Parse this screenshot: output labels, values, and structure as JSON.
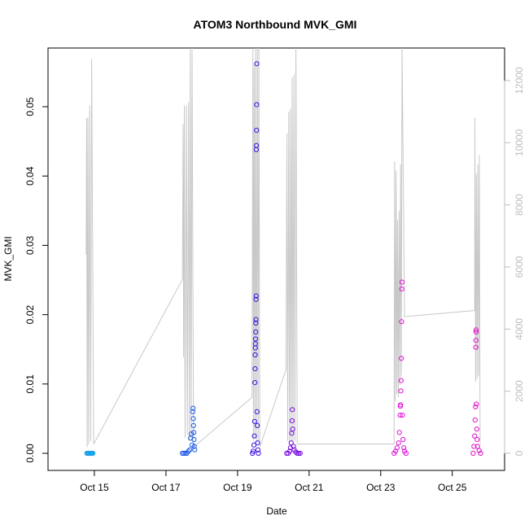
{
  "chart_data": {
    "type": "scatter",
    "title": "ATOM3 Northbound MVK_GMI",
    "xlabel": "Date",
    "ylabel": "MVK_GMI",
    "x_unit": "date",
    "xlim": [
      "2016-10-14T00:00",
      "2016-10-26T04:00"
    ],
    "ylim": [
      0,
      0.056
    ],
    "y_ticks": [
      0.0,
      0.01,
      0.02,
      0.03,
      0.04,
      0.05
    ],
    "y_tick_labels": [
      "0.00",
      "0.01",
      "0.02",
      "0.03",
      "0.04",
      "0.05"
    ],
    "x_ticks": [
      "2016-10-15",
      "2016-10-17",
      "2016-10-19",
      "2016-10-21",
      "2016-10-23",
      "2016-10-25"
    ],
    "x_tick_labels": [
      "Oct 15",
      "Oct 17",
      "Oct 19",
      "Oct 21",
      "Oct 23",
      "Oct 25"
    ],
    "y2lim": [
      0,
      12500
    ],
    "y2_ticks": [
      0,
      2000,
      4000,
      6000,
      8000,
      10000,
      12000
    ],
    "y2_tick_labels": [
      "0",
      "2000",
      "4000",
      "6000",
      "8000",
      "10000",
      "12000"
    ],
    "colors": {
      "altitude_line": "#c8c8c8",
      "right_axis": "#bdbdbd",
      "flight_colors": [
        "#1aa3e8",
        "#1f5be6",
        "#3a10e0",
        "#7a10e0",
        "#e010d8",
        "#e010c8"
      ]
    },
    "series": [
      {
        "color": "#1aa3e8",
        "points": [
          [
            "2016-10-14T19:00",
            0.0
          ],
          [
            "2016-10-14T19:30",
            0.0
          ],
          [
            "2016-10-14T20:00",
            0.0
          ],
          [
            "2016-10-14T20:30",
            0.0
          ],
          [
            "2016-10-14T21:00",
            0.0
          ],
          [
            "2016-10-14T21:30",
            0.0
          ],
          [
            "2016-10-14T22:00",
            0.0
          ],
          [
            "2016-10-14T22:30",
            0.0
          ],
          [
            "2016-10-14T23:00",
            0.0
          ]
        ]
      },
      {
        "color": "#1f5be6",
        "points": [
          [
            "2016-10-17T11:00",
            0.0
          ],
          [
            "2016-10-17T12:00",
            0.0
          ],
          [
            "2016-10-17T13:00",
            0.0
          ],
          [
            "2016-10-17T14:00",
            0.0
          ],
          [
            "2016-10-17T15:00",
            0.0003
          ],
          [
            "2016-10-17T16:00",
            0.0005
          ],
          [
            "2016-10-17T16:30",
            0.0022
          ],
          [
            "2016-10-17T17:00",
            0.0028
          ],
          [
            "2016-10-17T17:30",
            0.0012
          ],
          [
            "2016-10-17T18:00",
            0.006
          ],
          [
            "2016-10-17T18:10",
            0.0065
          ],
          [
            "2016-10-17T18:20",
            0.005
          ],
          [
            "2016-10-17T18:30",
            0.004
          ],
          [
            "2016-10-17T18:40",
            0.003
          ],
          [
            "2016-10-17T18:50",
            0.002
          ],
          [
            "2016-10-17T19:00",
            0.001
          ],
          [
            "2016-10-17T19:20",
            0.0005
          ]
        ]
      },
      {
        "color": "#3a10e0",
        "points": [
          [
            "2016-10-19T10:00",
            0.0
          ],
          [
            "2016-10-19T10:30",
            0.0003
          ],
          [
            "2016-10-19T11:00",
            0.0012
          ],
          [
            "2016-10-19T11:20",
            0.0025
          ],
          [
            "2016-10-19T11:30",
            0.0046
          ],
          [
            "2016-10-19T11:40",
            0.0102
          ],
          [
            "2016-10-19T11:45",
            0.0122
          ],
          [
            "2016-10-19T11:50",
            0.0142
          ],
          [
            "2016-10-19T11:55",
            0.0152
          ],
          [
            "2016-10-19T12:00",
            0.0158
          ],
          [
            "2016-10-19T12:05",
            0.0165
          ],
          [
            "2016-10-19T12:10",
            0.0175
          ],
          [
            "2016-10-19T12:15",
            0.0188
          ],
          [
            "2016-10-19T12:20",
            0.0193
          ],
          [
            "2016-10-19T12:25",
            0.0222
          ],
          [
            "2016-10-19T12:30",
            0.0227
          ],
          [
            "2016-10-19T12:35",
            0.0438
          ],
          [
            "2016-10-19T12:40",
            0.0444
          ],
          [
            "2016-10-19T12:45",
            0.0466
          ],
          [
            "2016-10-19T12:50",
            0.0503
          ],
          [
            "2016-10-19T12:55",
            0.0562
          ],
          [
            "2016-10-19T13:05",
            0.006
          ],
          [
            "2016-10-19T13:15",
            0.004
          ],
          [
            "2016-10-19T13:25",
            0.0015
          ],
          [
            "2016-10-19T13:40",
            0.0005
          ],
          [
            "2016-10-19T14:00",
            0.0
          ]
        ]
      },
      {
        "color": "#7a10e0",
        "points": [
          [
            "2016-10-20T09:00",
            0.0
          ],
          [
            "2016-10-20T10:00",
            0.0
          ],
          [
            "2016-10-20T11:00",
            0.0003
          ],
          [
            "2016-10-20T11:30",
            0.0008
          ],
          [
            "2016-10-20T12:00",
            0.0015
          ],
          [
            "2016-10-20T12:20",
            0.0029
          ],
          [
            "2016-10-20T12:35",
            0.0047
          ],
          [
            "2016-10-20T12:45",
            0.0063
          ],
          [
            "2016-10-20T13:00",
            0.0035
          ],
          [
            "2016-10-20T13:30",
            0.001
          ],
          [
            "2016-10-20T14:00",
            0.0005
          ],
          [
            "2016-10-20T15:00",
            0.0002
          ],
          [
            "2016-10-20T16:00",
            0.0
          ],
          [
            "2016-10-20T17:00",
            0.0
          ],
          [
            "2016-10-20T18:00",
            0.0
          ]
        ]
      },
      {
        "color": "#e010d8",
        "points": [
          [
            "2016-10-23T09:00",
            0.0
          ],
          [
            "2016-10-23T10:00",
            0.0003
          ],
          [
            "2016-10-23T11:00",
            0.0008
          ],
          [
            "2016-10-23T12:00",
            0.0015
          ],
          [
            "2016-10-23T12:30",
            0.003
          ],
          [
            "2016-10-23T13:00",
            0.0055
          ],
          [
            "2016-10-23T13:10",
            0.0068
          ],
          [
            "2016-10-23T13:20",
            0.007
          ],
          [
            "2016-10-23T13:30",
            0.009
          ],
          [
            "2016-10-23T13:40",
            0.0105
          ],
          [
            "2016-10-23T13:50",
            0.0137
          ],
          [
            "2016-10-23T14:00",
            0.019
          ],
          [
            "2016-10-23T14:10",
            0.0237
          ],
          [
            "2016-10-23T14:20",
            0.0247
          ],
          [
            "2016-10-23T14:35",
            0.0055
          ],
          [
            "2016-10-23T15:00",
            0.002
          ],
          [
            "2016-10-23T15:30",
            0.0008
          ],
          [
            "2016-10-23T16:00",
            0.0003
          ],
          [
            "2016-10-23T17:00",
            0.0
          ]
        ]
      },
      {
        "color": "#e010c8",
        "points": [
          [
            "2016-10-25T14:00",
            0.0
          ],
          [
            "2016-10-25T14:30",
            0.001
          ],
          [
            "2016-10-25T15:00",
            0.0025
          ],
          [
            "2016-10-25T15:20",
            0.0048
          ],
          [
            "2016-10-25T15:35",
            0.0067
          ],
          [
            "2016-10-25T15:45",
            0.0153
          ],
          [
            "2016-10-25T15:50",
            0.0163
          ],
          [
            "2016-10-25T15:55",
            0.0175
          ],
          [
            "2016-10-25T16:00",
            0.0178
          ],
          [
            "2016-10-25T16:10",
            0.0071
          ],
          [
            "2016-10-25T16:25",
            0.0035
          ],
          [
            "2016-10-25T16:40",
            0.002
          ],
          [
            "2016-10-25T17:00",
            0.001
          ],
          [
            "2016-10-25T18:00",
            0.0004
          ],
          [
            "2016-10-25T19:00",
            0.0
          ]
        ]
      }
    ],
    "altitude_series": {
      "color": "#c8c8c8",
      "points": [
        [
          "2016-10-14T18:30",
          6400
        ],
        [
          "2016-10-14T18:50",
          10800
        ],
        [
          "2016-10-14T19:10",
          200
        ],
        [
          "2016-10-14T19:40",
          10800
        ],
        [
          "2016-10-14T20:10",
          300
        ],
        [
          "2016-10-14T20:50",
          11200
        ],
        [
          "2016-10-14T21:30",
          400
        ],
        [
          "2016-10-14T22:10",
          12700
        ],
        [
          "2016-10-14T23:30",
          300
        ],
        [
          "2016-10-17T11:00",
          5600
        ],
        [
          "2016-10-17T11:30",
          10600
        ],
        [
          "2016-10-17T11:50",
          3100
        ],
        [
          "2016-10-17T12:20",
          11200
        ],
        [
          "2016-10-17T12:50",
          500
        ],
        [
          "2016-10-17T13:40",
          11200
        ],
        [
          "2016-10-17T14:20",
          600
        ],
        [
          "2016-10-17T15:10",
          11300
        ],
        [
          "2016-10-17T15:40",
          400
        ],
        [
          "2016-10-17T16:20",
          13000
        ],
        [
          "2016-10-17T16:50",
          500
        ],
        [
          "2016-10-17T17:30",
          14000
        ],
        [
          "2016-10-17T18:30",
          200
        ],
        [
          "2016-10-19T09:40",
          1800
        ],
        [
          "2016-10-19T10:20",
          13000
        ],
        [
          "2016-10-19T10:40",
          400
        ],
        [
          "2016-10-19T11:10",
          12500
        ],
        [
          "2016-10-19T11:40",
          500
        ],
        [
          "2016-10-19T12:10",
          13600
        ],
        [
          "2016-10-19T12:40",
          300
        ],
        [
          "2016-10-19T13:20",
          13900
        ],
        [
          "2016-10-19T13:50",
          400
        ],
        [
          "2016-10-19T14:20",
          13600
        ],
        [
          "2016-10-19T15:00",
          200
        ],
        [
          "2016-10-20T08:30",
          2700
        ],
        [
          "2016-10-20T09:10",
          10300
        ],
        [
          "2016-10-20T09:40",
          400
        ],
        [
          "2016-10-20T10:20",
          11000
        ],
        [
          "2016-10-20T10:50",
          300
        ],
        [
          "2016-10-20T11:30",
          11100
        ],
        [
          "2016-10-20T12:00",
          400
        ],
        [
          "2016-10-20T12:40",
          12100
        ],
        [
          "2016-10-20T13:10",
          300
        ],
        [
          "2016-10-20T13:50",
          12200
        ],
        [
          "2016-10-20T14:30",
          400
        ],
        [
          "2016-10-20T15:10",
          13200
        ],
        [
          "2016-10-20T16:00",
          300
        ],
        [
          "2016-10-23T09:00",
          300
        ],
        [
          "2016-10-23T09:20",
          9400
        ],
        [
          "2016-10-23T09:50",
          1700
        ],
        [
          "2016-10-23T10:20",
          9100
        ],
        [
          "2016-10-23T10:50",
          1900
        ],
        [
          "2016-10-23T11:20",
          7500
        ],
        [
          "2016-10-23T11:50",
          1800
        ],
        [
          "2016-10-23T12:20",
          7800
        ],
        [
          "2016-10-23T12:50",
          2200
        ],
        [
          "2016-10-23T13:20",
          9300
        ],
        [
          "2016-10-23T13:50",
          2500
        ],
        [
          "2016-10-23T14:20",
          13400
        ],
        [
          "2016-10-23T16:00",
          4400
        ],
        [
          "2016-10-25T15:00",
          4600
        ],
        [
          "2016-10-25T15:10",
          10800
        ],
        [
          "2016-10-25T15:40",
          2300
        ],
        [
          "2016-10-25T16:10",
          9000
        ],
        [
          "2016-10-25T16:40",
          2400
        ],
        [
          "2016-10-25T17:10",
          9300
        ],
        [
          "2016-10-25T17:40",
          2500
        ],
        [
          "2016-10-25T18:10",
          9600
        ],
        [
          "2016-10-25T18:40",
          300
        ]
      ]
    }
  }
}
